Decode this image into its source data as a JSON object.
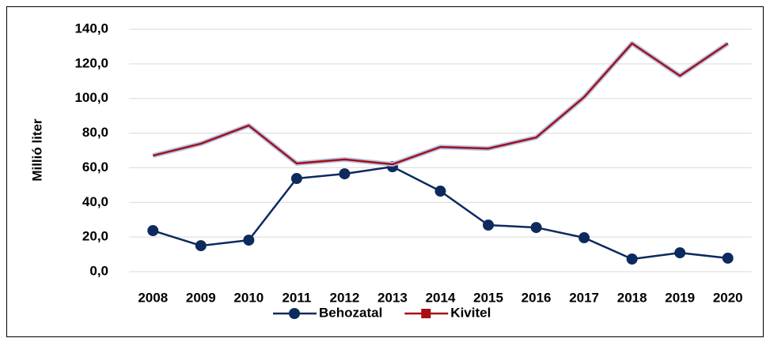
{
  "chart_data": {
    "type": "line",
    "y_label": "Millió liter",
    "categories": [
      "2008",
      "2009",
      "2010",
      "2011",
      "2012",
      "2013",
      "2014",
      "2015",
      "2016",
      "2017",
      "2018",
      "2019",
      "2020"
    ],
    "series": [
      {
        "name": "Behozatal",
        "color": "#0d2a5e",
        "marker": "circle",
        "values": [
          23.7,
          15.0,
          18.2,
          53.8,
          56.5,
          60.6,
          46.5,
          26.9,
          25.5,
          19.6,
          7.3,
          10.9,
          7.8
        ]
      },
      {
        "name": "Kivitel",
        "color": "#a50f15",
        "marker": "square",
        "values": [
          67.0,
          73.9,
          84.4,
          62.5,
          64.8,
          62.0,
          72.0,
          71.1,
          77.5,
          100.8,
          131.8,
          113.1,
          131.8
        ]
      }
    ],
    "ylim": [
      0,
      140
    ],
    "yticks": [
      {
        "value": 0,
        "label": "0,0"
      },
      {
        "value": 20,
        "label": "20,0"
      },
      {
        "value": 40,
        "label": "40,0"
      },
      {
        "value": 60,
        "label": "60,0"
      },
      {
        "value": 80,
        "label": "80,0"
      },
      {
        "value": 100,
        "label": "100,0"
      },
      {
        "value": 120,
        "label": "120,0"
      },
      {
        "value": 140,
        "label": "140,0"
      }
    ],
    "grid": true,
    "legend": "bottom"
  }
}
